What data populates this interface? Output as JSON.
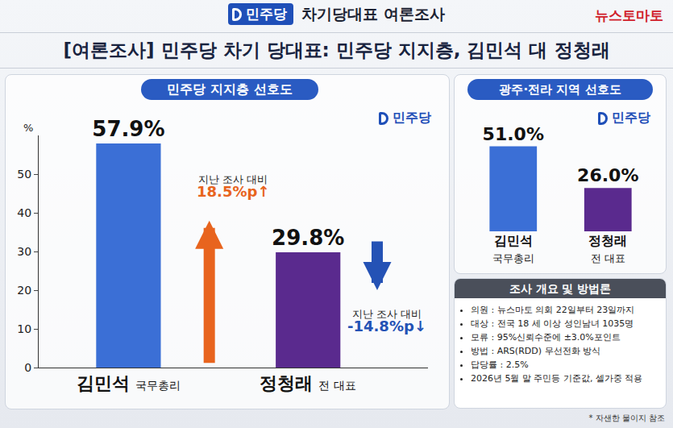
{
  "header": {
    "logo": "민주당",
    "title": "차기당대표 여론조사",
    "brand": "뉴스토마토"
  },
  "title": "[여론조사] 민주당 차기 당대표: 민주당 지지층, 김민석 대 정청래",
  "chart_data": [
    {
      "type": "bar",
      "title": "민주당 지지층 선호도",
      "logo": "민주당",
      "categories": [
        "김민석",
        "정청래"
      ],
      "roles": [
        "국무총리",
        "전 대표"
      ],
      "values": [
        57.9,
        29.8
      ],
      "value_labels": [
        "57.9%",
        "29.8%"
      ],
      "colors": [
        "#3b6fd6",
        "#5a2a8e"
      ],
      "ylabel": "%",
      "ylim": [
        0,
        60
      ],
      "yticks": [
        0,
        10,
        20,
        30,
        40,
        50
      ],
      "grid": false,
      "data_labels": true,
      "annotations": [
        {
          "category": "김민석",
          "text": "지난 조사 대비",
          "change": "18.5%p↑",
          "color": "#e8641e"
        },
        {
          "category": "정청래",
          "text": "지난 조사 대비",
          "change": "-14.8%p↓",
          "color": "#2452b5"
        }
      ]
    },
    {
      "type": "bar",
      "title": "광주·전라 지역 선호도",
      "logo": "민주당",
      "categories": [
        "김민석",
        "정청래"
      ],
      "roles": [
        "국무총리",
        "전 대표"
      ],
      "values": [
        51.0,
        26.0
      ],
      "value_labels": [
        "51.0%",
        "26.0%"
      ],
      "colors": [
        "#3b6fd6",
        "#5a2a8e"
      ],
      "ylim": [
        0,
        60
      ],
      "grid": false,
      "data_labels": true,
      "tick_labels": "x"
    }
  ],
  "methodology": {
    "title": "조사 개요 및 방법론",
    "items": [
      "의원 : 뉴스마토 의회   22일부터 23일까지",
      "대상 : 전국 18 세 이상 성인남녀 1035명",
      "모류 : 95%신뢰수준에 ±3.0%포인트",
      "방법 : ARS(RDD) 무선전화 방식",
      "답당률 : 2.5%",
      "2026년 5월 말 주민등 기준값, 셀가중 적용"
    ]
  },
  "footnote": "* 자샌한 물이지 참조"
}
